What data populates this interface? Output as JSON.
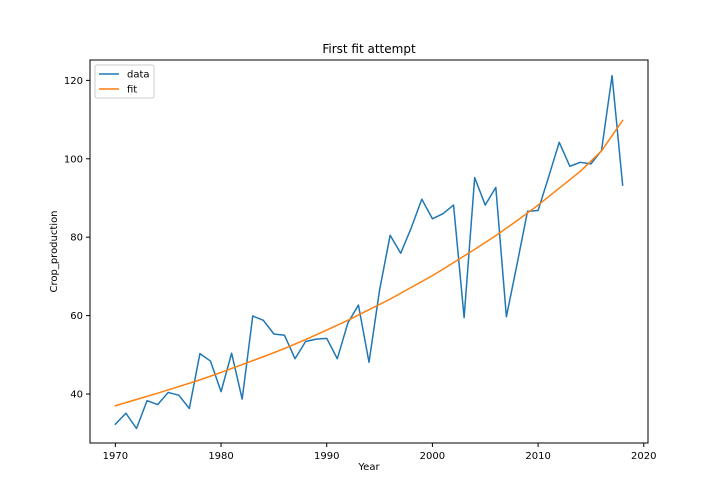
{
  "chart_data": {
    "type": "line",
    "title": "First fit attempt",
    "xlabel": "Year",
    "ylabel": "Crop_production",
    "xlim": [
      1967.6,
      2020.4
    ],
    "ylim": [
      27.5,
      125.2
    ],
    "xticks": [
      1970,
      1980,
      1990,
      2000,
      2010,
      2020
    ],
    "yticks": [
      40,
      60,
      80,
      100,
      120
    ],
    "grid": false,
    "legend": {
      "location": "upper left",
      "entries": [
        "data",
        "fit"
      ]
    },
    "series": [
      {
        "name": "data",
        "color": "#1f77b4",
        "x": [
          1970,
          1971,
          1972,
          1973,
          1974,
          1975,
          1976,
          1977,
          1978,
          1979,
          1980,
          1981,
          1982,
          1983,
          1984,
          1985,
          1986,
          1987,
          1988,
          1989,
          1990,
          1991,
          1992,
          1993,
          1994,
          1995,
          1996,
          1997,
          1998,
          1999,
          2000,
          2001,
          2002,
          2003,
          2004,
          2005,
          2006,
          2007,
          2008,
          2009,
          2010,
          2011,
          2012,
          2013,
          2014,
          2015,
          2016,
          2017,
          2018
        ],
        "y": [
          32.3,
          35.1,
          31.2,
          38.3,
          37.3,
          40.4,
          39.7,
          36.3,
          50.3,
          48.4,
          40.6,
          50.4,
          38.7,
          59.9,
          58.8,
          55.3,
          55.0,
          49.0,
          53.4,
          54.0,
          54.2,
          49.0,
          58.1,
          62.7,
          48.1,
          66.5,
          80.5,
          75.9,
          82.4,
          89.7,
          84.7,
          86.0,
          88.2,
          59.5,
          95.2,
          88.2,
          92.7,
          59.7,
          73.0,
          86.6,
          86.8,
          95.4,
          104.2,
          98.1,
          99.1,
          98.7,
          102.1,
          121.2,
          93.3
        ]
      },
      {
        "name": "fit",
        "color": "#ff7f0e",
        "x": [
          1970,
          1972,
          1974,
          1976,
          1978,
          1980,
          1982,
          1984,
          1986,
          1988,
          1990,
          1992,
          1994,
          1996,
          1998,
          2000,
          2002,
          2004,
          2006,
          2008,
          2010,
          2012,
          2014,
          2016,
          2018
        ],
        "y": [
          37.0,
          38.6,
          40.2,
          41.9,
          43.6,
          45.5,
          47.5,
          49.5,
          51.6,
          53.9,
          56.3,
          58.8,
          61.5,
          64.2,
          67.2,
          70.2,
          73.5,
          76.9,
          80.4,
          84.2,
          88.2,
          92.5,
          96.8,
          102.0,
          109.8
        ]
      }
    ]
  }
}
